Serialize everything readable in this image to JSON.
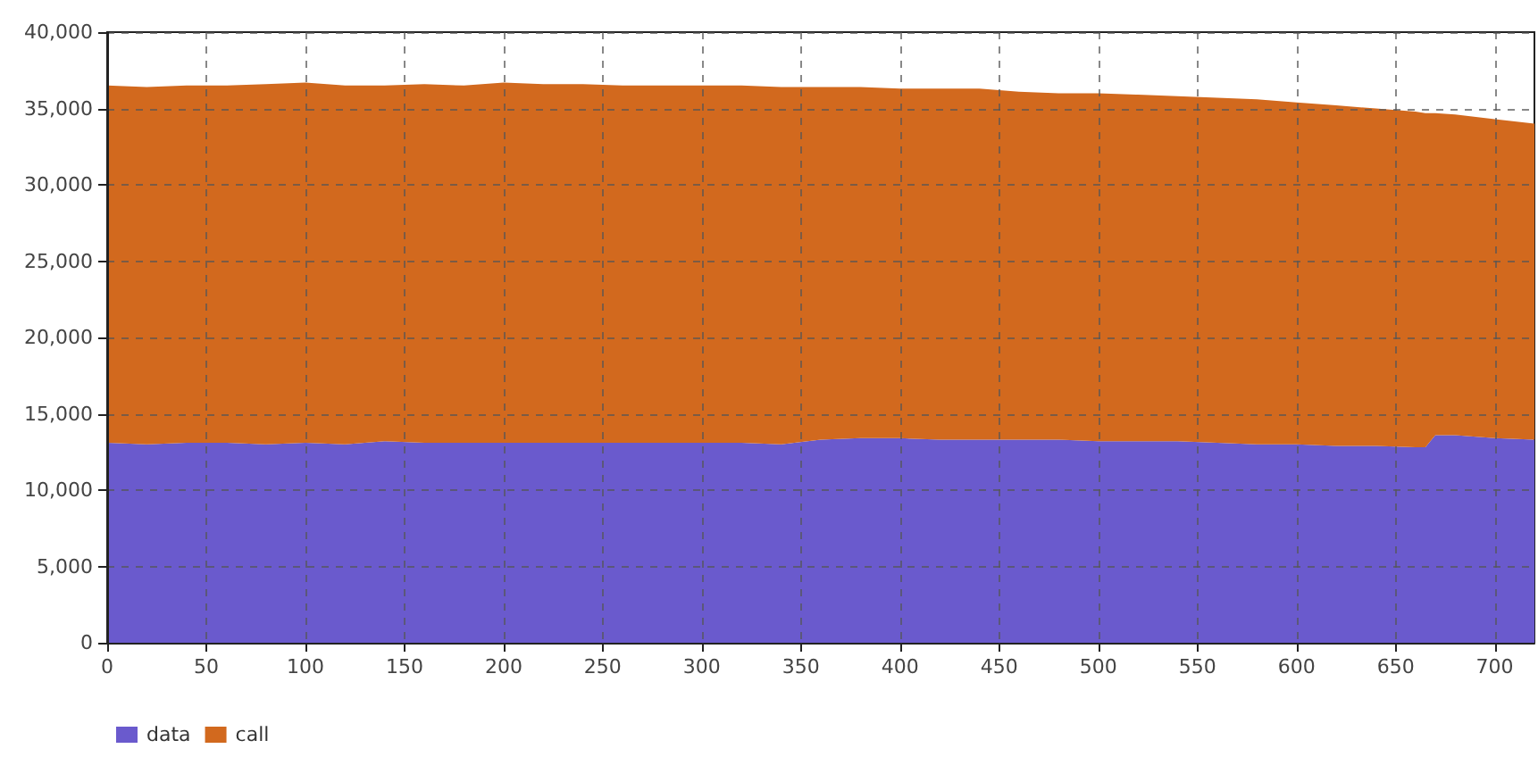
{
  "chart_data": {
    "type": "area",
    "stacked": true,
    "x": [
      0,
      20,
      40,
      60,
      80,
      100,
      120,
      140,
      160,
      180,
      200,
      220,
      240,
      260,
      280,
      300,
      320,
      340,
      360,
      380,
      400,
      420,
      440,
      460,
      480,
      500,
      520,
      540,
      560,
      580,
      600,
      620,
      640,
      660,
      665,
      670,
      680,
      700,
      720
    ],
    "series": [
      {
        "name": "data",
        "color": "#6a5acd",
        "values": [
          13100,
          13000,
          13100,
          13100,
          13000,
          13100,
          13000,
          13200,
          13100,
          13100,
          13100,
          13100,
          13100,
          13100,
          13100,
          13100,
          13100,
          13000,
          13300,
          13400,
          13400,
          13300,
          13300,
          13300,
          13300,
          13200,
          13200,
          13200,
          13100,
          13000,
          13000,
          12900,
          12900,
          12800,
          12800,
          13600,
          13600,
          13400,
          13300
        ]
      },
      {
        "name": "call",
        "color": "#d2691e",
        "values": [
          23400,
          23400,
          23400,
          23400,
          23600,
          23600,
          23500,
          23300,
          23500,
          23400,
          23600,
          23500,
          23500,
          23400,
          23400,
          23400,
          23400,
          23400,
          23100,
          23000,
          22900,
          23000,
          23000,
          22800,
          22700,
          22800,
          22700,
          22600,
          22600,
          22600,
          22400,
          22300,
          22100,
          22000,
          21900,
          21100,
          21000,
          20900,
          20700
        ]
      }
    ],
    "xlim": [
      0,
      720
    ],
    "xticks": [
      0,
      50,
      100,
      150,
      200,
      250,
      300,
      350,
      400,
      450,
      500,
      550,
      600,
      650,
      700
    ],
    "ylim": [
      0,
      40000
    ],
    "yticks": [
      0,
      {
        "value": 5000,
        "label": "5,000"
      },
      {
        "value": 10000,
        "label": "10,000"
      },
      {
        "value": 15000,
        "label": "15,000"
      },
      {
        "value": 20000,
        "label": "20,000"
      },
      {
        "value": 25000,
        "label": "25,000"
      },
      {
        "value": 30000,
        "label": "30,000"
      },
      {
        "value": 35000,
        "label": "35,000"
      },
      {
        "value": 40000,
        "label": "40,000"
      }
    ],
    "grid": true,
    "legend": "bottom left"
  }
}
